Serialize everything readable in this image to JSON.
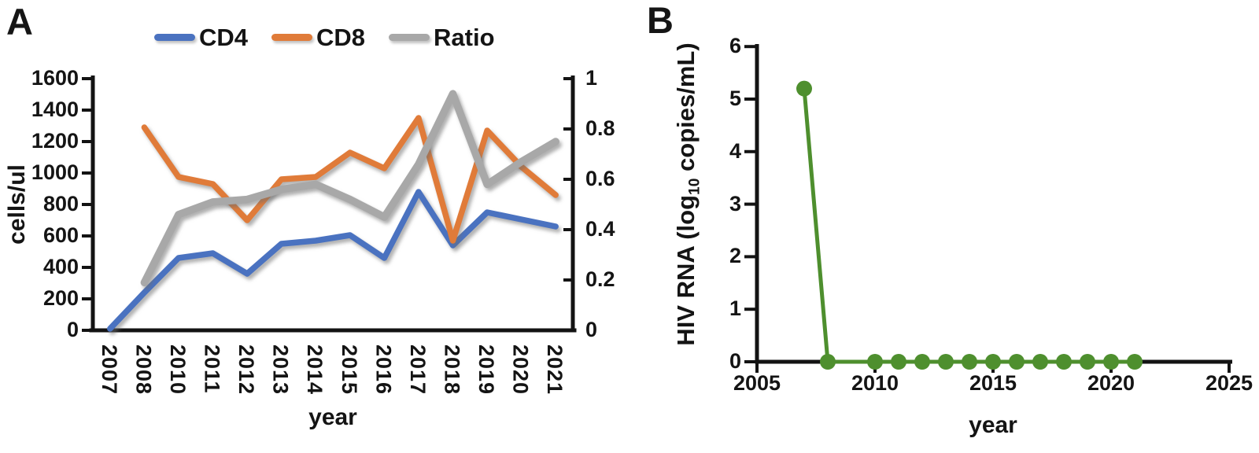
{
  "panel_a": {
    "label": "A",
    "legend": [
      {
        "label": "CD4",
        "color": "#4a72c0"
      },
      {
        "label": "CD8",
        "color": "#e07b39"
      },
      {
        "label": "Ratio",
        "color": "#a8a8a8"
      }
    ],
    "y_left_axis": {
      "title": "cells/ul",
      "tick_labels": [
        "0",
        "200",
        "400",
        "600",
        "800",
        "1000",
        "1200",
        "1400",
        "1600"
      ]
    },
    "y_right_axis": {
      "tick_labels": [
        "0",
        "0.2",
        "0.4",
        "0.6",
        "0.8",
        "1"
      ]
    },
    "x_axis": {
      "title": "year",
      "tick_labels": [
        "2007",
        "2008",
        "2010",
        "2011",
        "2012",
        "2013",
        "2014",
        "2015",
        "2016",
        "2017",
        "2018",
        "2019",
        "2020",
        "2021"
      ]
    }
  },
  "panel_b": {
    "label": "B",
    "y_axis": {
      "title_pre": "HIV RNA (log",
      "title_sub": "10",
      "title_post": " copies/mL)",
      "tick_labels": [
        "0",
        "1",
        "2",
        "3",
        "4",
        "5",
        "6"
      ]
    },
    "x_axis": {
      "title": "year",
      "tick_labels": [
        "2005",
        "2010",
        "2015",
        "2020",
        "2025"
      ]
    },
    "point_color": "#4e8f2e"
  },
  "chart_data": [
    {
      "type": "line",
      "panel": "A",
      "categories": [
        "2007",
        "2008",
        "2010",
        "2011",
        "2012",
        "2013",
        "2014",
        "2015",
        "2016",
        "2017",
        "2018",
        "2019",
        "2020",
        "2021"
      ],
      "series": [
        {
          "name": "CD4",
          "yaxis": "left",
          "color": "#4a72c0",
          "values": [
            10,
            240,
            460,
            490,
            360,
            550,
            570,
            605,
            460,
            880,
            540,
            750,
            705,
            660
          ]
        },
        {
          "name": "CD8",
          "yaxis": "left",
          "color": "#e07b39",
          "values": [
            null,
            1290,
            975,
            930,
            700,
            960,
            975,
            1130,
            1030,
            1350,
            570,
            1270,
            1040,
            860
          ]
        },
        {
          "name": "Ratio",
          "yaxis": "right",
          "color": "#a8a8a8",
          "values": [
            null,
            0.19,
            0.46,
            0.51,
            0.52,
            0.56,
            0.58,
            0.52,
            0.45,
            0.66,
            0.94,
            0.58,
            0.67,
            0.75
          ]
        }
      ],
      "xlabel": "year",
      "ylabel_left": "cells/ul",
      "ylim_left": [
        0,
        1600
      ],
      "ylim_right": [
        0,
        1
      ],
      "legend_position": "top",
      "grid": false
    },
    {
      "type": "line",
      "panel": "B",
      "x": [
        2007,
        2008,
        2010,
        2011,
        2012,
        2013,
        2014,
        2015,
        2016,
        2017,
        2018,
        2019,
        2020,
        2021
      ],
      "values": [
        5.2,
        0,
        0,
        0,
        0,
        0,
        0,
        0,
        0,
        0,
        0,
        0,
        0,
        0
      ],
      "marker": "circle",
      "color": "#4e8f2e",
      "xlabel": "year",
      "ylabel": "HIV RNA (log10 copies/mL)",
      "xlim": [
        2005,
        2025
      ],
      "ylim": [
        0,
        6
      ],
      "x_tick_labels": [
        2005,
        2010,
        2015,
        2020,
        2025
      ],
      "grid": false
    }
  ]
}
